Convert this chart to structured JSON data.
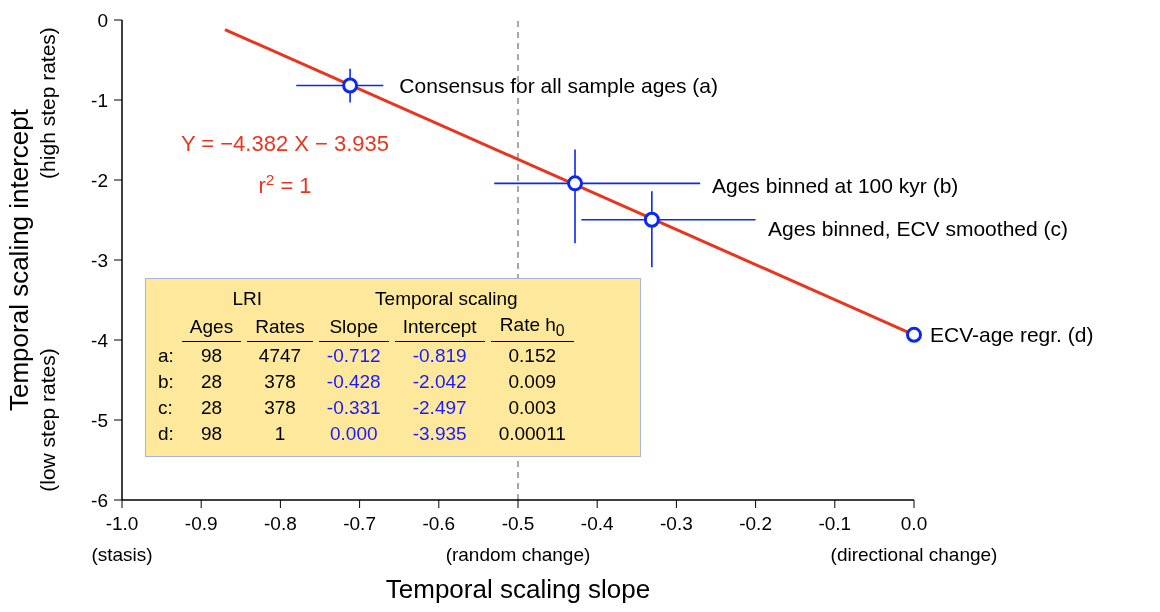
{
  "chart_data": [
    {
      "type": "scatter",
      "xlabel": "Temporal scaling slope",
      "ylabel": "Temporal scaling intercept",
      "xlim": [
        -1,
        0
      ],
      "ylim": [
        -6,
        0
      ],
      "xticks": [
        {
          "value": -1,
          "label": "-1.0\n(stasis)"
        },
        {
          "value": -0.9,
          "label": "-0.9"
        },
        {
          "value": -0.8,
          "label": "-0.8"
        },
        {
          "value": -0.7,
          "label": "-0.7"
        },
        {
          "value": -0.6,
          "label": "-0.6"
        },
        {
          "value": -0.5,
          "label": "-0.5\n(random change)"
        },
        {
          "value": -0.4,
          "label": "-0.4"
        },
        {
          "value": -0.3,
          "label": "-0.3"
        },
        {
          "value": -0.2,
          "label": "-0.2"
        },
        {
          "value": -0.1,
          "label": "-0.1"
        },
        {
          "value": 0,
          "label": "0.0\n(directional change)"
        }
      ],
      "yticks": [
        0,
        -1,
        -2,
        -3,
        -4,
        -5,
        -6
      ],
      "ref_lines": [
        {
          "axis": "x",
          "value": -0.5,
          "color": "#8c8c8c",
          "line_style": "dashed"
        }
      ],
      "annotations": [
        {
          "text": "Consensus for all sample ages (a)",
          "x": -0.712,
          "y": -0.819
        },
        "Ages binned at 100 kyr (b)",
        "Ages binned, ECV smoothed (c)",
        {
          "text": "ECV-age regr. (d)",
          "x": 0,
          "y": -3.935
        },
        "Y = −4.382 X − 3.935",
        "r$^{2}$ = 1",
        "(high step rates)",
        "(low step rates)"
      ],
      "series": [
        {
          "type": "scatter",
          "marker": "circle",
          "color": "#0a28f0",
          "x": [
            -0.712,
            -0.428,
            -0.331,
            0
          ],
          "values": [
            -0.819,
            -2.042,
            -2.497,
            -3.935
          ],
          "errors": [
            [
              -1.03,
              -0.61
            ],
            [
              -2.79,
              -1.62
            ],
            [
              -3.09,
              -2.14
            ],
            null
          ],
          "xerrors": [
            [
              -0.78,
              -0.67
            ],
            [
              -0.53,
              -0.27
            ],
            [
              -0.42,
              -0.2
            ],
            null
          ]
        },
        {
          "type": "line",
          "color": "#e8351e",
          "x": [
            -0.87,
            0
          ],
          "values": [
            -0.12,
            -3.935
          ]
        }
      ]
    },
    {
      "type": "other",
      "annotations": [
        "LRI",
        "Temporal scaling"
      ],
      "categories": [
        "Ages",
        "Rates",
        "Slope",
        "Intercept",
        "Rate h$_{0}$"
      ],
      "y_categories": [
        "a:",
        "b:",
        "c:",
        "d:"
      ],
      "colors": [
        "#000000",
        "#000000",
        "#1a1aff",
        "#1a1aff",
        "#000000"
      ],
      "cell_labels": [
        [
          "98",
          "4747",
          "-0.712",
          "-0.819",
          "0.152"
        ],
        [
          "28",
          "378",
          "-0.428",
          "-2.042",
          "0.009"
        ],
        [
          "28",
          "378",
          "-0.331",
          "-2.497",
          "0.003"
        ],
        [
          "98",
          "1",
          "0.000",
          "-3.935",
          "0.00011"
        ]
      ]
    }
  ]
}
